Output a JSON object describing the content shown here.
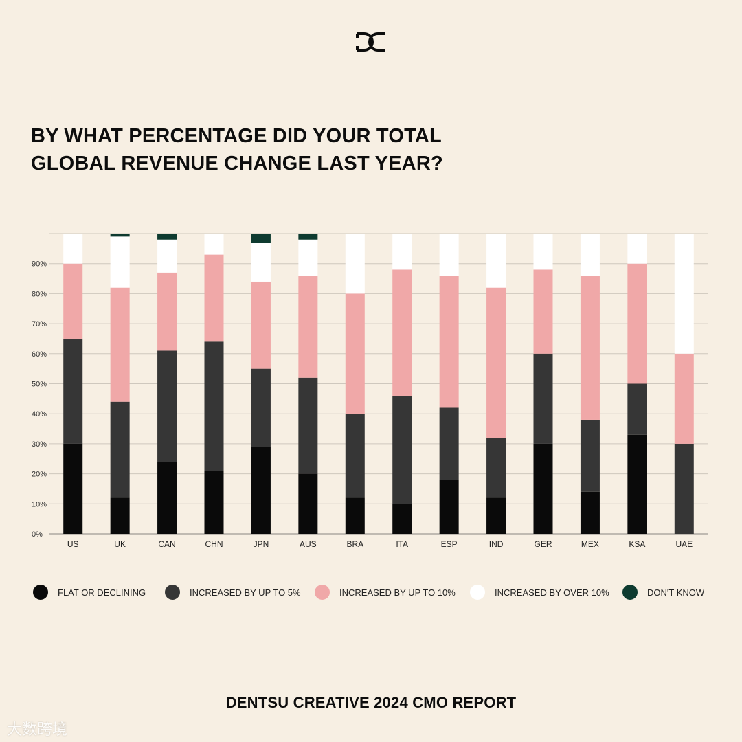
{
  "title_lines": [
    "BY WHAT PERCENTAGE DID YOUR TOTAL",
    "GLOBAL REVENUE CHANGE LAST YEAR?"
  ],
  "footer": "DENTSU CREATIVE 2024 CMO REPORT",
  "watermark": "大数跨境",
  "chart_data": {
    "type": "bar",
    "stacked": true,
    "title": "BY WHAT PERCENTAGE DID YOUR TOTAL GLOBAL REVENUE CHANGE LAST YEAR?",
    "categories": [
      "US",
      "UK",
      "CAN",
      "CHN",
      "JPN",
      "AUS",
      "BRA",
      "ITA",
      "ESP",
      "IND",
      "GER",
      "MEX",
      "KSA",
      "UAE"
    ],
    "ylim": [
      0,
      100
    ],
    "yticks": [
      0,
      10,
      20,
      30,
      40,
      50,
      60,
      70,
      80,
      90
    ],
    "ytick_labels": [
      "0%",
      "10%",
      "20%",
      "30%",
      "40%",
      "50%",
      "60%",
      "70%",
      "80%",
      "90%"
    ],
    "grid": true,
    "legend_position": "bottom",
    "series": [
      {
        "name": "FLAT OR DECLINING",
        "color": "#0a0a0a",
        "values": [
          30,
          12,
          24,
          21,
          29,
          20,
          12,
          10,
          18,
          12,
          30,
          14,
          33,
          0
        ]
      },
      {
        "name": "INCREASED BY UP TO 5%",
        "color": "#363636",
        "values": [
          35,
          32,
          37,
          43,
          26,
          32,
          28,
          36,
          24,
          20,
          30,
          24,
          17,
          30
        ]
      },
      {
        "name": "INCREASED BY UP TO 10%",
        "color": "#f0a8a8",
        "values": [
          25,
          38,
          26,
          29,
          29,
          34,
          40,
          42,
          44,
          50,
          28,
          48,
          40,
          30
        ]
      },
      {
        "name": "INCREASED BY OVER 10%",
        "color": "#ffffff",
        "values": [
          10,
          17,
          11,
          7,
          13,
          12,
          20,
          12,
          14,
          18,
          12,
          14,
          10,
          40
        ]
      },
      {
        "name": "DON'T KNOW",
        "color": "#0e3b30",
        "values": [
          0,
          1,
          2,
          0,
          3,
          2,
          0,
          0,
          0,
          0,
          0,
          0,
          0,
          0
        ]
      }
    ]
  }
}
